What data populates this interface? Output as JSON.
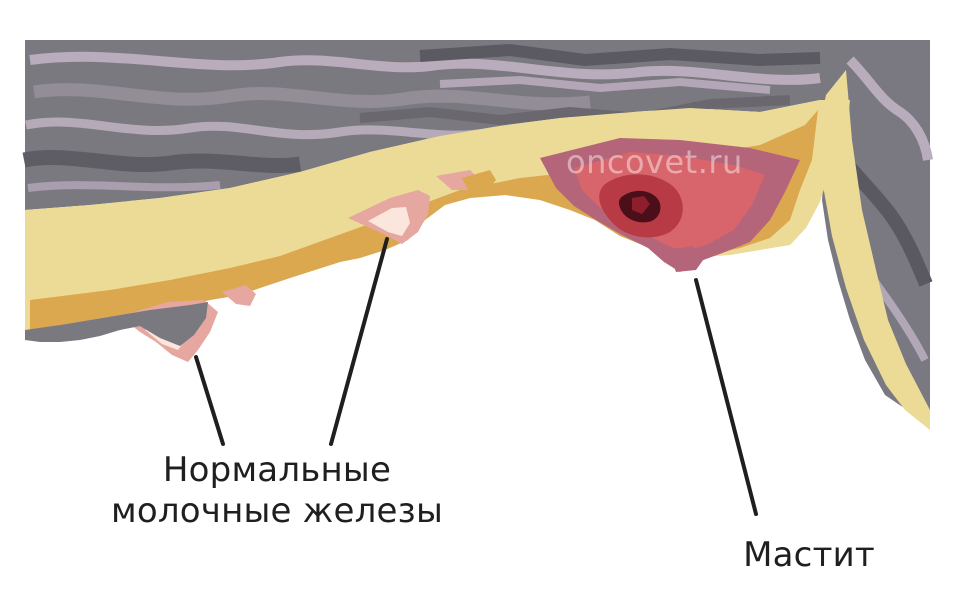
{
  "labels": {
    "normal_glands_line1": "Нормальные",
    "normal_glands_line2": "молочные железы",
    "mastitis": "Мастит"
  },
  "watermark": "oncovet.ru",
  "colors": {
    "fur_dark": "#6e6c72",
    "fur_mid": "#8f8c93",
    "fur_light": "#b9acbc",
    "fat_light": "#ecdb96",
    "fat_orange": "#dca84f",
    "nipple_pink": "#e6a7a0",
    "nipple_highlight": "#fbe6de",
    "inflamed_outer": "#b46579",
    "inflamed_mid": "#d7656b",
    "inflamed_core": "#b73a45",
    "abscess": "#4b0f1a",
    "pointer_line": "#1f1f1f"
  }
}
